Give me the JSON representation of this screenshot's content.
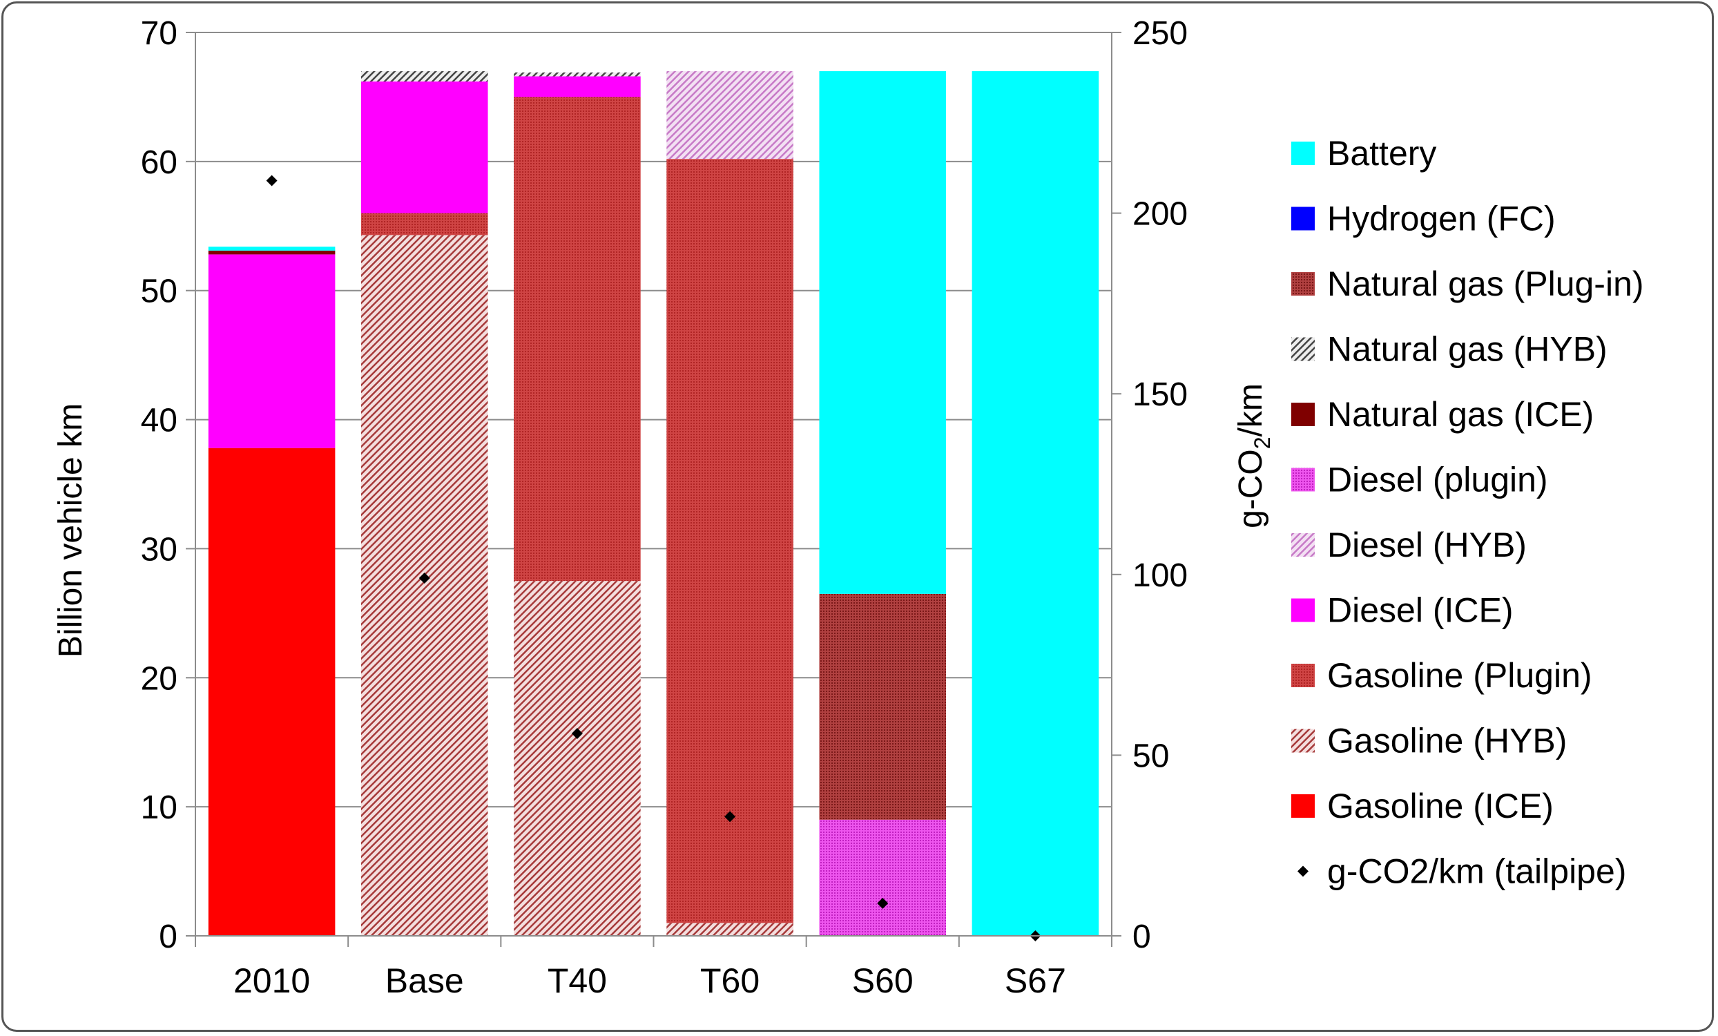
{
  "chart_data": {
    "type": "bar",
    "stacked": true,
    "categories": [
      "2010",
      "Base",
      "T40",
      "T60",
      "S60",
      "S67"
    ],
    "ylabel": "Billion vehicle km",
    "y2label_main": "g-CO",
    "y2label_sub": "2",
    "y2label_tail": "/km",
    "ylim": [
      0,
      70
    ],
    "y2lim": [
      0,
      250
    ],
    "yticks": [
      "0",
      "10",
      "20",
      "30",
      "40",
      "50",
      "60",
      "70"
    ],
    "y2ticks": [
      "0",
      "50",
      "100",
      "150",
      "200",
      "250"
    ],
    "series": [
      {
        "name": "Gasoline (ICE)",
        "color": "#ff0000",
        "pattern": "solid",
        "values": [
          37.8,
          0,
          0,
          0,
          0,
          0
        ]
      },
      {
        "name": "Gasoline (HYB)",
        "color": "#c0504d",
        "pattern": "hatch-red",
        "values": [
          0,
          54.3,
          27.5,
          1.0,
          0,
          0
        ]
      },
      {
        "name": "Gasoline (Plugin)",
        "color": "#c0504d",
        "pattern": "dots-red",
        "values": [
          0,
          1.7,
          37.5,
          59.2,
          0,
          0
        ]
      },
      {
        "name": "Diesel (ICE)",
        "color": "#ff00ff",
        "pattern": "solid",
        "values": [
          15.0,
          10.2,
          1.6,
          0,
          0,
          0
        ]
      },
      {
        "name": "Diesel (HYB)",
        "color": "#cc66cc",
        "pattern": "hatch-pink",
        "values": [
          0,
          0,
          0,
          6.8,
          0,
          0
        ]
      },
      {
        "name": "Diesel (plugin)",
        "color": "#cc33cc",
        "pattern": "dots-magenta",
        "values": [
          0,
          0,
          0,
          0,
          9.0,
          0
        ]
      },
      {
        "name": "Natural gas (ICE)",
        "color": "#7f0000",
        "pattern": "solid",
        "values": [
          0.3,
          0,
          0,
          0,
          0,
          0
        ]
      },
      {
        "name": "Natural gas (HYB)",
        "color": "#555555",
        "pattern": "hatch-gray",
        "values": [
          0,
          0.8,
          0.3,
          0,
          0,
          0
        ]
      },
      {
        "name": "Natural gas (Plug-in)",
        "color": "#9e2a2a",
        "pattern": "dots-darkred",
        "values": [
          0,
          0,
          0,
          0,
          17.5,
          0
        ]
      },
      {
        "name": "Hydrogen (FC)",
        "color": "#0000ff",
        "pattern": "solid",
        "values": [
          0,
          0,
          0,
          0,
          0,
          0
        ]
      },
      {
        "name": "Battery",
        "color": "#00ffff",
        "pattern": "solid",
        "values": [
          0.3,
          0,
          0,
          0,
          40.5,
          67.0
        ]
      }
    ],
    "line_series": {
      "name": "g-CO2/km (tailpipe)",
      "axis": "secondary",
      "values": [
        209,
        99,
        56,
        33,
        9,
        0
      ]
    },
    "legend": {
      "placement": "right",
      "order": [
        "Battery",
        "Hydrogen (FC)",
        "Natural gas (Plug-in)",
        "Natural gas (HYB)",
        "Natural gas (ICE)",
        "Diesel (plugin)",
        "Diesel (HYB)",
        "Diesel (ICE)",
        "Gasoline (Plugin)",
        "Gasoline (HYB)",
        "Gasoline (ICE)",
        "g-CO2/km (tailpipe)"
      ]
    },
    "grid": {
      "horizontal": true,
      "vertical": false
    }
  }
}
